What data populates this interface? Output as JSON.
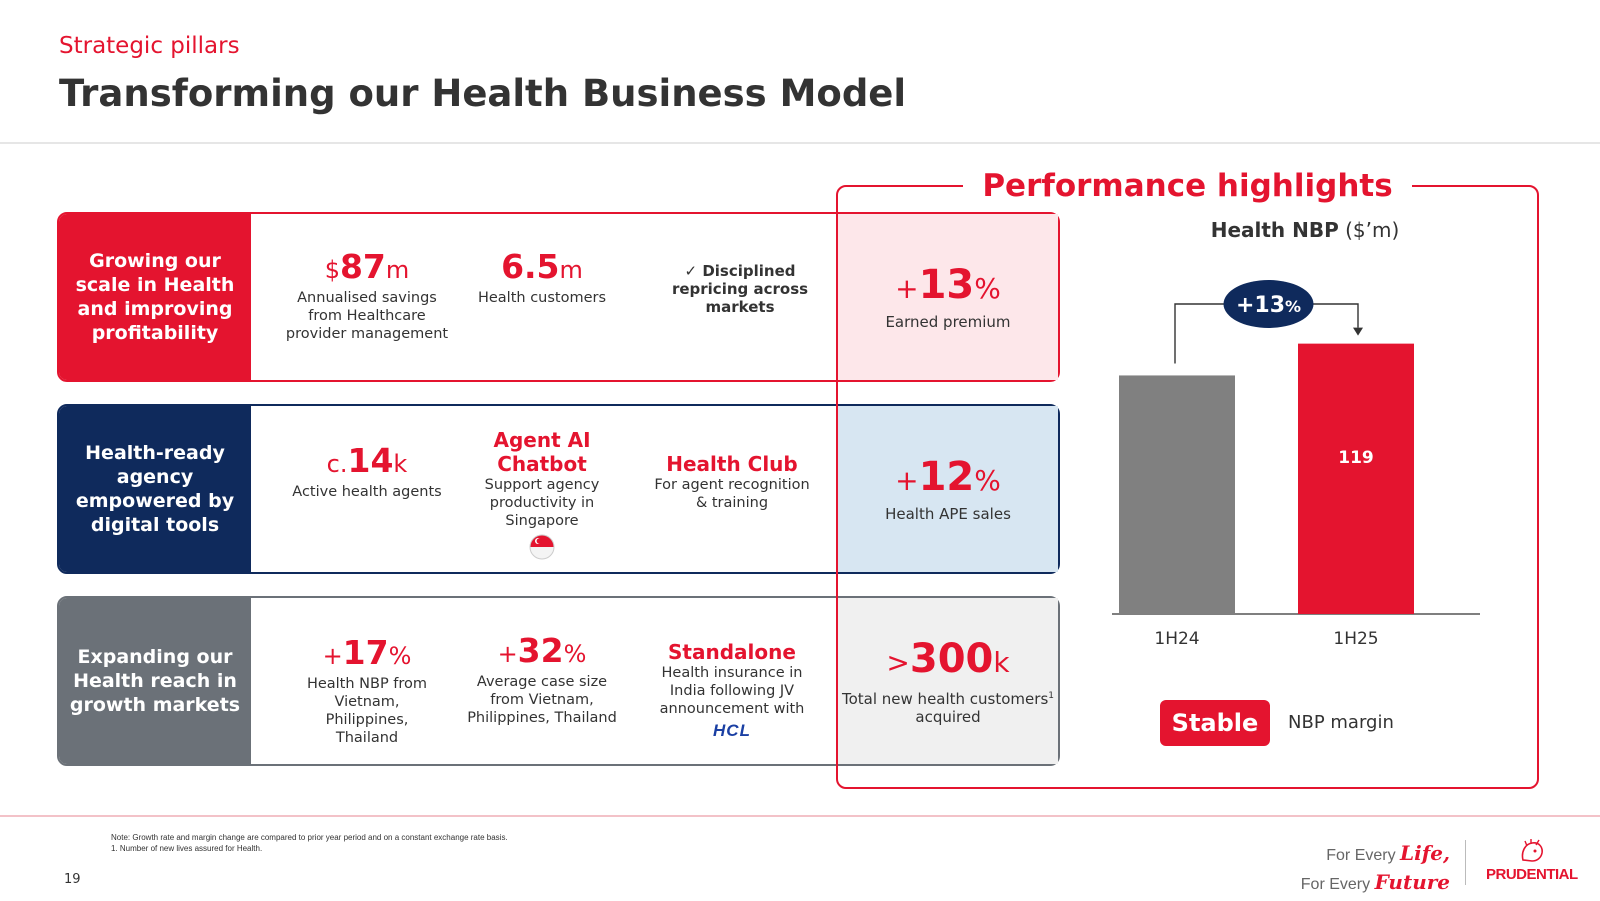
{
  "header": {
    "kicker": "Strategic pillars",
    "title": "Transforming our Health Business Model"
  },
  "rows": [
    {
      "label": "Growing our scale in Health and improving profitability",
      "items": [
        {
          "pre": "$",
          "value": "87",
          "suf": "m",
          "desc": "Annualised savings from Healthcare provider management"
        },
        {
          "pre": "",
          "value": "6.5",
          "suf": "m",
          "desc": "Health customers"
        },
        {
          "check": "✓",
          "title": "Disciplined repricing across markets"
        }
      ],
      "highlight": {
        "pre": "+",
        "value": "13",
        "suf": "%",
        "desc": "Earned premium"
      }
    },
    {
      "label": "Health-ready agency empowered by digital tools",
      "items": [
        {
          "pre": "c.",
          "value": "14",
          "suf": "k",
          "desc": "Active health agents"
        },
        {
          "headline": "Agent AI Chatbot",
          "desc": "Support agency productivity in Singapore",
          "icon": "singapore-flag-icon"
        },
        {
          "headline": "Health Club",
          "desc": "For agent recognition & training"
        }
      ],
      "highlight": {
        "pre": "+",
        "value": "12",
        "suf": "%",
        "desc": "Health APE sales"
      }
    },
    {
      "label": "Expanding our Health reach in growth markets",
      "items": [
        {
          "pre": "+",
          "value": "17",
          "suf": "%",
          "desc": "Health NBP from Vietnam, Philippines, Thailand"
        },
        {
          "pre": "+",
          "value": "32",
          "suf": "%",
          "desc": "Average case size from Vietnam, Philippines, Thailand"
        },
        {
          "headline": "Standalone",
          "desc": "Health insurance in India following JV announcement with",
          "logo": "HCL"
        }
      ],
      "highlight": {
        "pre": ">",
        "value": "300",
        "suf": "k",
        "desc": "Total new health customers",
        "sup": "1",
        "desc_end": " acquired"
      }
    }
  ],
  "performance": {
    "title": "Performance highlights",
    "stable_badge": "Stable",
    "stable_label": "NBP margin"
  },
  "chart_data": {
    "type": "bar",
    "title": "Health NBP",
    "title_unit": "($’m)",
    "categories": [
      "1H24",
      "1H25"
    ],
    "values": [
      105,
      119
    ],
    "value_labels": [
      "",
      "119"
    ],
    "growth_label": {
      "pre": "+",
      "value": "13",
      "suf": "%"
    },
    "colors": [
      "#808080",
      "#e4142f"
    ],
    "growth_bubble_color": "#0f2a5c",
    "ylim": [
      0,
      125
    ],
    "grid": false,
    "legend": "none"
  },
  "footer": {
    "note_line1": "Note: Growth rate and margin change are compared to prior year period and on a constant exchange rate basis.",
    "note_line2": "1. Number of new lives assured for Health.",
    "page_number": "19",
    "tagline_1": "For Every ",
    "tagline_1_script": "Life,",
    "tagline_2": "For Every ",
    "tagline_2_script": "Future",
    "logo_text": "PRUDENTIAL"
  }
}
